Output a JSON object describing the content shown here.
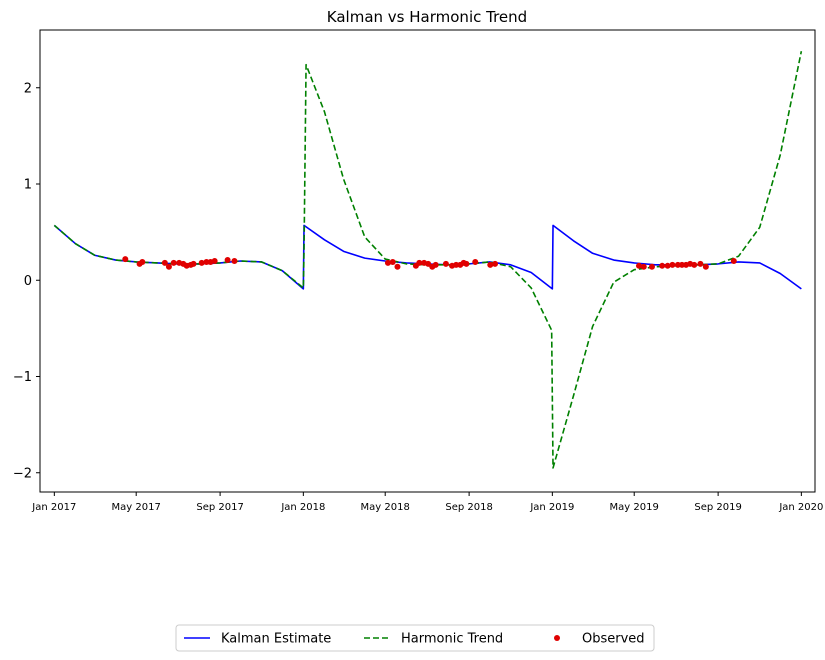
{
  "chart_data": {
    "type": "line",
    "title": "Kalman vs Harmonic Trend",
    "xlabel": "",
    "ylabel": "",
    "xlim": [
      "2016-12-11",
      "2020-01-21"
    ],
    "ylim": [
      -2.2,
      2.6
    ],
    "x_ticks": [
      {
        "date": "2017-01-01",
        "label": "Jan 2017"
      },
      {
        "date": "2017-05-01",
        "label": "May 2017"
      },
      {
        "date": "2017-09-01",
        "label": "Sep 2017"
      },
      {
        "date": "2018-01-01",
        "label": "Jan 2018"
      },
      {
        "date": "2018-05-01",
        "label": "May 2018"
      },
      {
        "date": "2018-09-01",
        "label": "Sep 2018"
      },
      {
        "date": "2019-01-01",
        "label": "Jan 2019"
      },
      {
        "date": "2019-05-01",
        "label": "May 2019"
      },
      {
        "date": "2019-09-01",
        "label": "Sep 2019"
      },
      {
        "date": "2020-01-01",
        "label": "Jan 2020"
      }
    ],
    "y_ticks": [
      {
        "value": 2,
        "label": "2"
      },
      {
        "value": 1,
        "label": "1"
      },
      {
        "value": 0,
        "label": "0"
      },
      {
        "value": -1,
        "label": "−1"
      },
      {
        "value": -2,
        "label": "−2"
      }
    ],
    "grid": false,
    "legend_position": "bottom-center",
    "series": [
      {
        "name": "Kalman Estimate",
        "kind": "line",
        "color": "#0000ff",
        "dash": "solid",
        "points": [
          [
            "2017-01-01",
            0.57
          ],
          [
            "2017-02-01",
            0.38
          ],
          [
            "2017-03-01",
            0.26
          ],
          [
            "2017-04-01",
            0.21
          ],
          [
            "2017-05-01",
            0.19
          ],
          [
            "2017-06-01",
            0.18
          ],
          [
            "2017-07-01",
            0.17
          ],
          [
            "2017-08-01",
            0.17
          ],
          [
            "2017-09-01",
            0.18
          ],
          [
            "2017-10-01",
            0.2
          ],
          [
            "2017-11-01",
            0.19
          ],
          [
            "2017-12-01",
            0.1
          ],
          [
            "2018-01-01",
            -0.09
          ],
          [
            "2018-01-02",
            0.57
          ],
          [
            "2018-02-01",
            0.42
          ],
          [
            "2018-03-01",
            0.3
          ],
          [
            "2018-04-01",
            0.23
          ],
          [
            "2018-05-01",
            0.2
          ],
          [
            "2018-06-01",
            0.18
          ],
          [
            "2018-07-01",
            0.17
          ],
          [
            "2018-08-01",
            0.16
          ],
          [
            "2018-09-01",
            0.17
          ],
          [
            "2018-10-01",
            0.19
          ],
          [
            "2018-11-01",
            0.16
          ],
          [
            "2018-12-01",
            0.08
          ],
          [
            "2019-01-01",
            -0.09
          ],
          [
            "2019-01-02",
            0.57
          ],
          [
            "2019-02-01",
            0.41
          ],
          [
            "2019-03-01",
            0.28
          ],
          [
            "2019-04-01",
            0.21
          ],
          [
            "2019-05-01",
            0.18
          ],
          [
            "2019-06-01",
            0.16
          ],
          [
            "2019-07-01",
            0.16
          ],
          [
            "2019-08-01",
            0.16
          ],
          [
            "2019-09-01",
            0.17
          ],
          [
            "2019-10-01",
            0.19
          ],
          [
            "2019-11-01",
            0.18
          ],
          [
            "2019-12-01",
            0.07
          ],
          [
            "2020-01-01",
            -0.09
          ]
        ]
      },
      {
        "name": "Harmonic Trend",
        "kind": "line",
        "color": "#008000",
        "dash": "dashed",
        "points": [
          [
            "2017-01-01",
            0.57
          ],
          [
            "2017-02-01",
            0.38
          ],
          [
            "2017-03-01",
            0.26
          ],
          [
            "2017-04-01",
            0.21
          ],
          [
            "2017-05-01",
            0.19
          ],
          [
            "2017-06-01",
            0.18
          ],
          [
            "2017-07-01",
            0.17
          ],
          [
            "2017-08-01",
            0.17
          ],
          [
            "2017-09-01",
            0.18
          ],
          [
            "2017-10-01",
            0.2
          ],
          [
            "2017-11-01",
            0.19
          ],
          [
            "2017-12-01",
            0.1
          ],
          [
            "2018-01-01",
            -0.08
          ],
          [
            "2018-01-02",
            0.3
          ],
          [
            "2018-01-05",
            2.24
          ],
          [
            "2018-02-01",
            1.75
          ],
          [
            "2018-03-01",
            1.05
          ],
          [
            "2018-04-01",
            0.45
          ],
          [
            "2018-05-01",
            0.22
          ],
          [
            "2018-06-01",
            0.17
          ],
          [
            "2018-07-01",
            0.16
          ],
          [
            "2018-08-01",
            0.16
          ],
          [
            "2018-09-01",
            0.17
          ],
          [
            "2018-10-01",
            0.19
          ],
          [
            "2018-11-01",
            0.14
          ],
          [
            "2018-12-01",
            -0.08
          ],
          [
            "2018-12-31",
            -0.52
          ],
          [
            "2019-01-02",
            -1.95
          ],
          [
            "2019-02-01",
            -1.2
          ],
          [
            "2019-03-01",
            -0.48
          ],
          [
            "2019-04-01",
            -0.02
          ],
          [
            "2019-05-01",
            0.11
          ],
          [
            "2019-06-01",
            0.14
          ],
          [
            "2019-07-01",
            0.15
          ],
          [
            "2019-08-01",
            0.16
          ],
          [
            "2019-09-01",
            0.17
          ],
          [
            "2019-10-01",
            0.25
          ],
          [
            "2019-11-01",
            0.55
          ],
          [
            "2019-12-01",
            1.3
          ],
          [
            "2020-01-01",
            2.38
          ]
        ]
      },
      {
        "name": "Observed",
        "kind": "scatter",
        "color": "#e00000",
        "points": [
          [
            "2017-04-15",
            0.22
          ],
          [
            "2017-05-06",
            0.17
          ],
          [
            "2017-05-10",
            0.19
          ],
          [
            "2017-06-12",
            0.18
          ],
          [
            "2017-06-18",
            0.14
          ],
          [
            "2017-06-25",
            0.18
          ],
          [
            "2017-07-03",
            0.18
          ],
          [
            "2017-07-09",
            0.17
          ],
          [
            "2017-07-14",
            0.15
          ],
          [
            "2017-07-20",
            0.16
          ],
          [
            "2017-07-24",
            0.17
          ],
          [
            "2017-08-05",
            0.18
          ],
          [
            "2017-08-12",
            0.19
          ],
          [
            "2017-08-18",
            0.19
          ],
          [
            "2017-08-24",
            0.2
          ],
          [
            "2017-09-12",
            0.21
          ],
          [
            "2017-09-22",
            0.2
          ],
          [
            "2018-05-05",
            0.18
          ],
          [
            "2018-05-12",
            0.19
          ],
          [
            "2018-05-19",
            0.14
          ],
          [
            "2018-06-15",
            0.15
          ],
          [
            "2018-06-20",
            0.18
          ],
          [
            "2018-06-27",
            0.18
          ],
          [
            "2018-07-03",
            0.17
          ],
          [
            "2018-07-09",
            0.14
          ],
          [
            "2018-07-14",
            0.16
          ],
          [
            "2018-07-29",
            0.17
          ],
          [
            "2018-08-07",
            0.15
          ],
          [
            "2018-08-13",
            0.16
          ],
          [
            "2018-08-19",
            0.16
          ],
          [
            "2018-08-24",
            0.18
          ],
          [
            "2018-08-28",
            0.17
          ],
          [
            "2018-09-10",
            0.19
          ],
          [
            "2018-10-02",
            0.16
          ],
          [
            "2018-10-09",
            0.17
          ],
          [
            "2019-05-08",
            0.15
          ],
          [
            "2019-05-15",
            0.14
          ],
          [
            "2019-05-27",
            0.14
          ],
          [
            "2019-06-11",
            0.15
          ],
          [
            "2019-06-19",
            0.15
          ],
          [
            "2019-06-26",
            0.16
          ],
          [
            "2019-07-04",
            0.16
          ],
          [
            "2019-07-10",
            0.16
          ],
          [
            "2019-07-16",
            0.16
          ],
          [
            "2019-07-22",
            0.17
          ],
          [
            "2019-07-28",
            0.16
          ],
          [
            "2019-08-06",
            0.17
          ],
          [
            "2019-08-14",
            0.14
          ],
          [
            "2019-09-24",
            0.2
          ]
        ]
      }
    ]
  }
}
